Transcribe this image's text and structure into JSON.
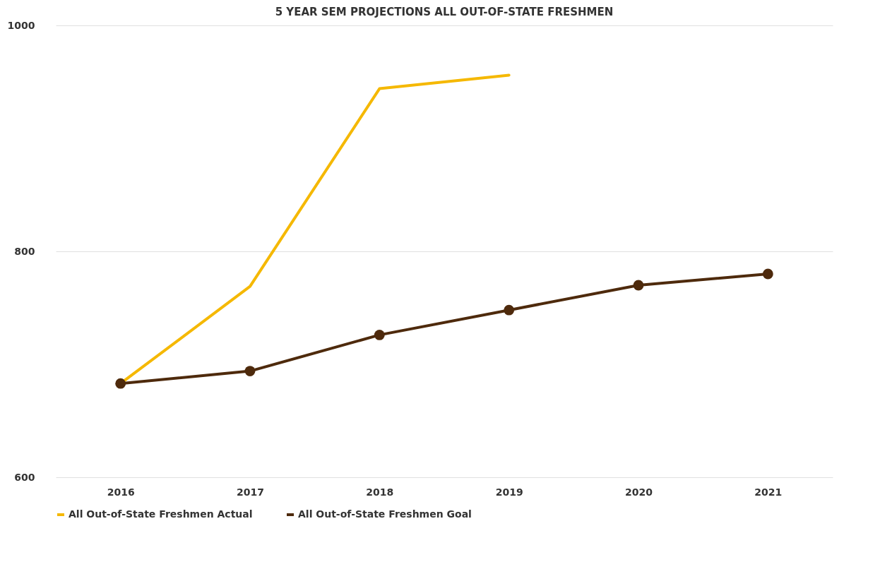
{
  "chart_data": {
    "type": "line",
    "title": "5 YEAR SEM PROJECTIONS ALL OUT-OF-STATE FRESHMEN",
    "categories": [
      "2016",
      "2017",
      "2018",
      "2019",
      "2020",
      "2021"
    ],
    "series": [
      {
        "name": "All Out-of-State Freshmen Actual",
        "color": "#f5b800",
        "values": [
          683,
          769,
          944,
          956,
          null,
          null
        ],
        "marker": "none"
      },
      {
        "name": "All Out-of-State Freshmen Goal",
        "color": "#4e2a0c",
        "values": [
          683,
          694,
          726,
          748,
          770,
          780
        ],
        "marker": "circle"
      }
    ],
    "ylim": [
      600,
      1000
    ],
    "yticks": [
      600,
      800,
      1000
    ],
    "grid": "y",
    "legend": "bottom",
    "line_style": "solid"
  }
}
